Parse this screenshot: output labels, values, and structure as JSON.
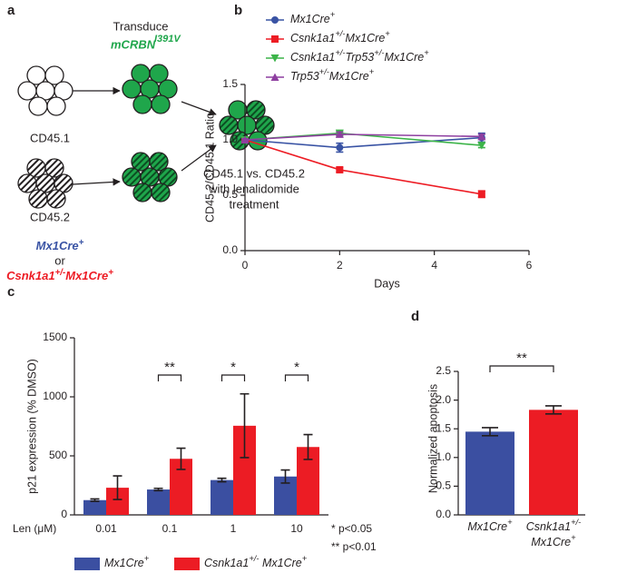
{
  "panel_labels": [
    "a",
    "b",
    "c",
    "d"
  ],
  "diagram": {
    "step": "Transduce",
    "construct": "mCRBN",
    "construct_superscript": "I391V",
    "population_1": "CD45.1",
    "population_2": "CD45.2",
    "readout": [
      "CD45.1 vs. CD45.2",
      "with lenalidomide",
      "treatment"
    ],
    "genotype_1": "Mx1Cre+",
    "conjunction": "or",
    "genotype_2": "Csnk1a1+/-Mx1Cre+"
  },
  "chart_data": [
    {
      "type": "line",
      "x_label": "Days",
      "y_label": "CD45.2/CD45.1 Ratio",
      "x": [
        0,
        2,
        5
      ],
      "xlim": [
        0,
        6
      ],
      "xticks": [
        0,
        2,
        4,
        6
      ],
      "ylim": [
        0,
        1.5
      ],
      "yticks": [
        {
          "value": 0,
          "label": "0.0"
        },
        0.5,
        {
          "value": 1,
          "label": "1.0"
        },
        1.5
      ],
      "series": [
        {
          "name": "Mx1Cre+",
          "color": "#3953a4",
          "marker": "circle",
          "values": [
            1.0,
            0.93,
            1.02
          ],
          "errors": [
            0.01,
            0.04,
            0.04
          ]
        },
        {
          "name": "Csnk1a1+/-Mx1Cre+",
          "color": "#ed1c24",
          "marker": "square",
          "values": [
            1.0,
            0.73,
            0.51
          ],
          "errors": [
            0.01,
            0.02,
            0.03
          ]
        },
        {
          "name": "Csnk1a1+/-Trp53+/-Mx1Cre+",
          "color": "#3cb449",
          "marker": "triangle-down",
          "values": [
            1.0,
            1.06,
            0.95
          ],
          "errors": [
            0.01,
            0.02,
            0.02
          ]
        },
        {
          "name": "Trp53+/-Mx1Cre+",
          "color": "#8e3fa0",
          "marker": "triangle-up",
          "values": [
            1.0,
            1.05,
            1.03
          ],
          "errors": [
            0.01,
            0.02,
            0.02
          ]
        }
      ]
    },
    {
      "type": "bar",
      "category_label": "Len (μM)",
      "y_label": "p21 expression (% DMSO)",
      "categories": [
        "0.01",
        "0.1",
        "1",
        "10"
      ],
      "ylim": [
        0,
        1500
      ],
      "yticks": [
        0,
        500,
        1000,
        1500
      ],
      "series": [
        {
          "name": "Mx1Cre+",
          "color": "#3b4fa1",
          "values": [
            125,
            215,
            295,
            325
          ],
          "errors": [
            10,
            10,
            15,
            55
          ]
        },
        {
          "name": "Csnk1a1+/- Mx1Cre+",
          "color": "#ec1c24",
          "values": [
            230,
            475,
            755,
            575
          ],
          "errors": [
            100,
            90,
            270,
            105
          ]
        }
      ],
      "significance": [
        {
          "category": "0.1",
          "label": "**"
        },
        {
          "category": "1",
          "label": "*"
        },
        {
          "category": "10",
          "label": "*"
        }
      ],
      "footnotes": [
        "* p<0.05",
        "** p<0.01"
      ]
    },
    {
      "type": "bar",
      "y_label": "Normalized apoptosis",
      "categories": [
        "Mx1Cre+",
        "Csnk1a1+/- Mx1Cre+"
      ],
      "values": [
        1.45,
        1.83
      ],
      "errors": [
        0.07,
        0.07
      ],
      "colors": [
        "#3b4fa1",
        "#ec1c24"
      ],
      "ylim": [
        0,
        2.5
      ],
      "yticks": [
        {
          "value": 0,
          "label": "0.0"
        },
        0.5,
        {
          "value": 1,
          "label": "1.0"
        },
        1.5,
        {
          "value": 2,
          "label": "2.0"
        },
        2.5
      ],
      "significance_label": "**"
    }
  ]
}
